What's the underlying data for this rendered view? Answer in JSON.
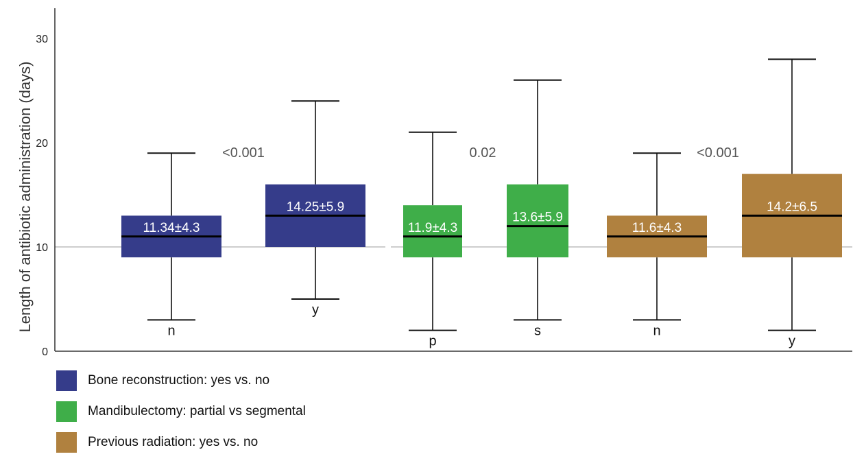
{
  "chart_data": {
    "type": "box",
    "ylabel": "Length of antibiotic administration (days)",
    "ylim": [
      0,
      33
    ],
    "yticks": [
      0,
      10,
      20,
      30
    ],
    "reference_line": 10,
    "groups": [
      {
        "legend": "Bone reconstruction: yes vs. no",
        "color": "#353c8a",
        "pvalue": "<0.001",
        "boxes": [
          {
            "label": "n",
            "min": 3,
            "q1": 9,
            "median": 11,
            "q3": 13,
            "max": 19,
            "annotation": "11.34±4.3"
          },
          {
            "label": "y",
            "min": 5,
            "q1": 10,
            "median": 13,
            "q3": 16,
            "max": 24,
            "annotation": "14.25±5.9"
          }
        ]
      },
      {
        "legend": "Mandibulectomy: partial vs segmental",
        "color": "#3fae49",
        "pvalue": "0.02",
        "boxes": [
          {
            "label": "p",
            "min": 2,
            "q1": 9,
            "median": 11,
            "q3": 14,
            "max": 21,
            "annotation": "11.9±4.3"
          },
          {
            "label": "s",
            "min": 3,
            "q1": 9,
            "median": 12,
            "q3": 16,
            "max": 26,
            "annotation": "13.6±5.9"
          }
        ]
      },
      {
        "legend": "Previous radiation: yes vs. no",
        "color": "#b0813f",
        "pvalue": "<0.001",
        "boxes": [
          {
            "label": "n",
            "min": 3,
            "q1": 9,
            "median": 11,
            "q3": 13,
            "max": 19,
            "annotation": "11.6±4.3"
          },
          {
            "label": "y",
            "min": 2,
            "q1": 9,
            "median": 13,
            "q3": 17,
            "max": 28,
            "annotation": "14.2±6.5"
          }
        ]
      }
    ]
  }
}
